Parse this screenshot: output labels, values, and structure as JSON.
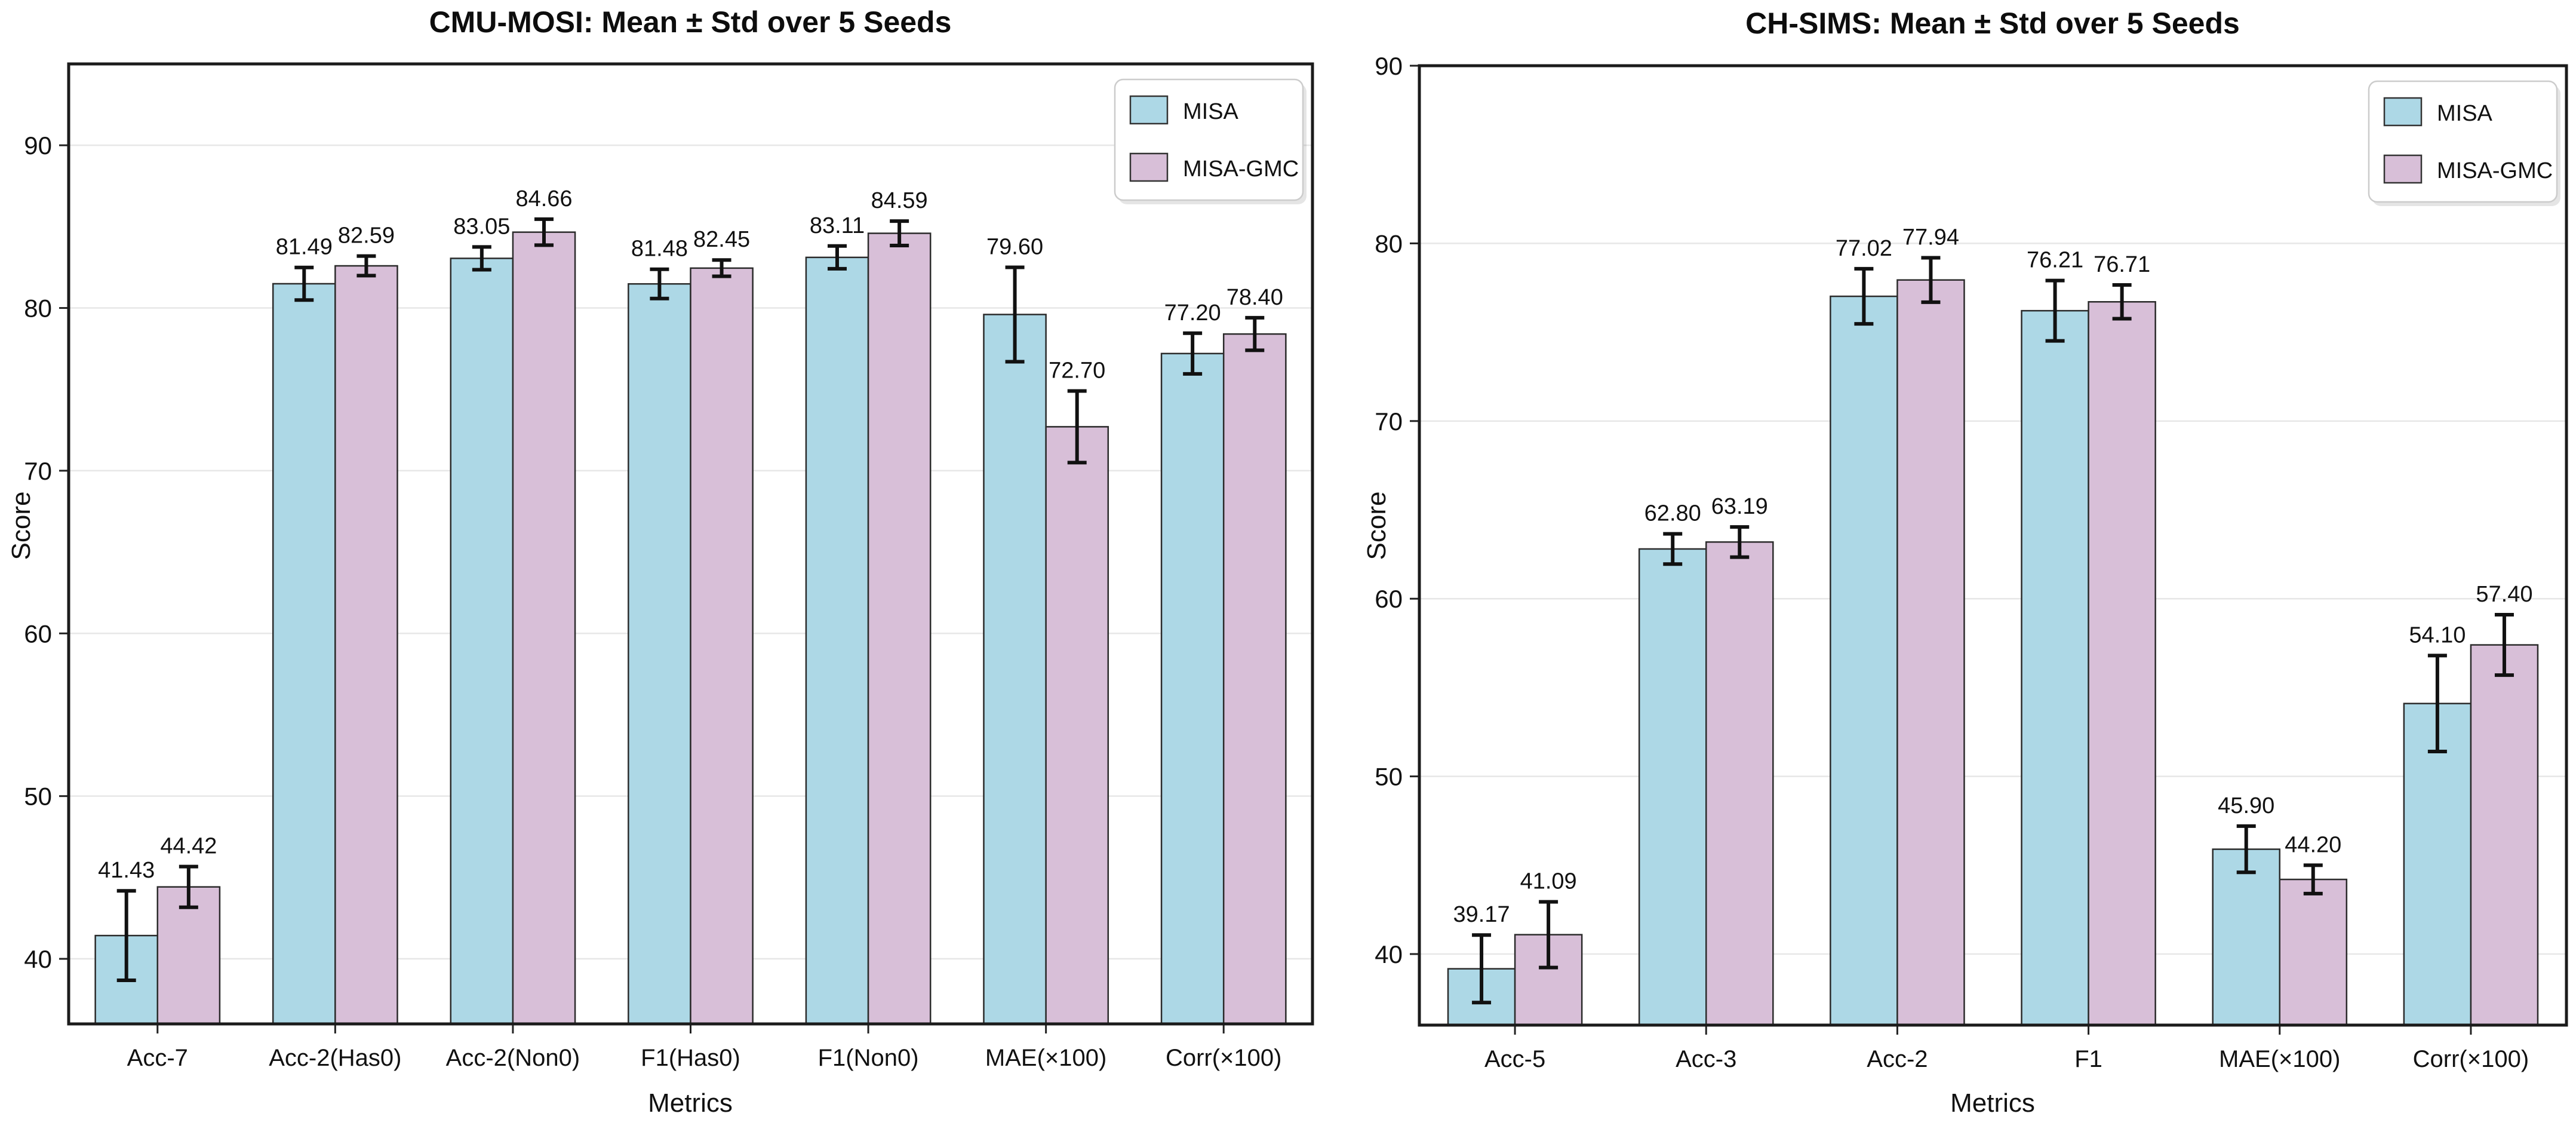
{
  "style": {
    "background": "#ffffff",
    "grid_color": "#e7e7e7",
    "bar_edge_color": "#2b2b2b",
    "error_color": "#111111",
    "spine_color": "#1b1b1b",
    "text_color": "#111111",
    "legend_border": "#cccccc",
    "misa_color": "#ADD8E6",
    "misa_gmc_color": "#D8BFD8"
  },
  "chart_data": [
    {
      "type": "bar",
      "title": "CMU-MOSI: Mean ± Std over 5 Seeds",
      "xlabel": "Metrics",
      "ylabel": "Score",
      "ylim": [
        36,
        95
      ],
      "yticks": [
        40,
        50,
        60,
        70,
        80,
        90
      ],
      "grid": true,
      "legend_position": "upper right",
      "categories": [
        "Acc-7",
        "Acc-2(Has0)",
        "Acc-2(Non0)",
        "F1(Has0)",
        "F1(Non0)",
        "MAE(×100)",
        "Corr(×100)"
      ],
      "series": [
        {
          "name": "MISA",
          "color": "#ADD8E6",
          "values": [
            41.43,
            81.49,
            83.05,
            81.48,
            83.11,
            79.6,
            77.2
          ],
          "errors": [
            2.75,
            1.0,
            0.7,
            0.9,
            0.7,
            2.9,
            1.25
          ]
        },
        {
          "name": "MISA-GMC",
          "color": "#D8BFD8",
          "values": [
            44.42,
            82.59,
            84.66,
            82.45,
            84.59,
            72.7,
            78.4
          ],
          "errors": [
            1.25,
            0.6,
            0.8,
            0.5,
            0.75,
            2.2,
            1.0
          ]
        }
      ]
    },
    {
      "type": "bar",
      "title": "CH-SIMS: Mean ± Std over 5 Seeds",
      "xlabel": "Metrics",
      "ylabel": "Score",
      "ylim": [
        36,
        90
      ],
      "yticks": [
        40,
        50,
        60,
        70,
        80,
        90
      ],
      "grid": true,
      "legend_position": "upper right",
      "categories": [
        "Acc-5",
        "Acc-3",
        "Acc-2",
        "F1",
        "MAE(×100)",
        "Corr(×100)"
      ],
      "series": [
        {
          "name": "MISA",
          "color": "#ADD8E6",
          "values": [
            39.17,
            62.8,
            77.02,
            76.21,
            45.9,
            54.1
          ],
          "errors": [
            1.9,
            0.85,
            1.55,
            1.7,
            1.3,
            2.7
          ]
        },
        {
          "name": "MISA-GMC",
          "color": "#D8BFD8",
          "values": [
            41.09,
            63.19,
            77.94,
            76.71,
            44.2,
            57.4
          ],
          "errors": [
            1.85,
            0.85,
            1.25,
            0.95,
            0.8,
            1.7
          ]
        }
      ]
    }
  ]
}
